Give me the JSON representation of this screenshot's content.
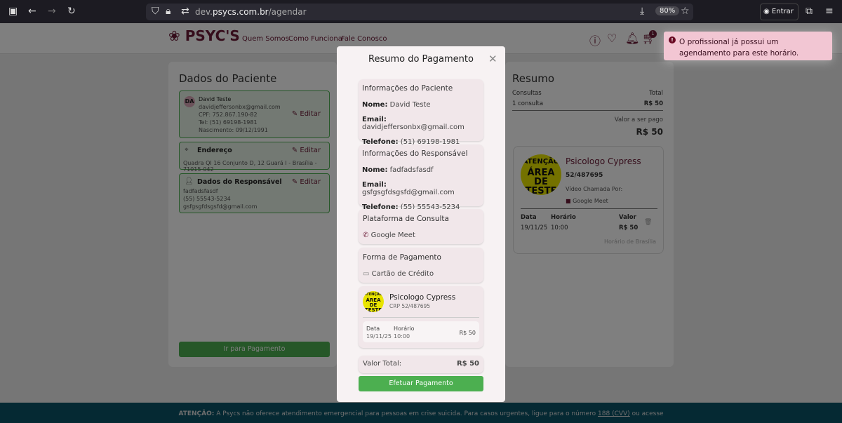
{
  "browser": {
    "url_host": "dev.psycs.com.br",
    "url_path": "/agendar",
    "url_prefix": "dev.",
    "url_domain": "psycs.com.br",
    "zoom": "80%",
    "signin": "Entrar"
  },
  "header": {
    "logo": "PSYC'S",
    "nav": [
      "Quem Somos",
      "Como Funciona",
      "Fale Conosco"
    ],
    "cart_count": "1"
  },
  "patient": {
    "title": "Dados do Paciente",
    "initials": "DA",
    "name": "David Teste",
    "email": "davidjeffersonbx@gmail.com",
    "cpf": "CPF: 752.867.190-82",
    "tel": "Tel: (51) 69198-1981",
    "birth": "Nascimento: 09/12/1991",
    "edit": "Editar",
    "address_title": "Endereço",
    "address": "Quadra QI 16 Conjunto D, 12 Guará I - Brasília - 71015-042",
    "resp_title": "Dados do Responsável",
    "resp_name": "fadfadsfasdf",
    "resp_tel": "(55) 55543-5234",
    "resp_email": "gsfgsgfdsgsfd@gmail.com",
    "pay_button": "Ir para Pagamento"
  },
  "summary": {
    "title": "Resumo",
    "col1": "Consultas",
    "col2": "Total",
    "count": "1 consulta",
    "total": "R$ 50",
    "to_pay_label": "Valor a ser pago",
    "to_pay": "R$ 50",
    "pro_name": "Psicologo Cypress",
    "crp": "52/487695",
    "video_label": "Vídeo Chamada Por:",
    "platform": "Google Meet",
    "date_h": "Data",
    "time_h": "Horário",
    "value_h": "Valor",
    "date": "19/11/25",
    "time": "10:00",
    "value": "R$ 50",
    "tz": "Horário de Brasília"
  },
  "test_image": {
    "l1": "ATENÇÃO",
    "l2": "ÁREA DE",
    "l3": "TESTE"
  },
  "modal": {
    "title": "Resumo do Pagamento",
    "patient_h": "Informações do Paciente",
    "resp_h": "Informações do Responsável",
    "name_l": "Nome:",
    "email_l": "Email:",
    "phone_l": "Telefone:",
    "p_name": "David Teste",
    "p_email": "davidjeffersonbx@gmail.com",
    "p_phone": "(51) 69198-1981",
    "r_name": "fadfadsfasdf",
    "r_email": "gsfgsgfdsgsfd@gmail.com",
    "r_phone": "(55) 55543-5234",
    "platform_h": "Plataforma de Consulta",
    "platform": "Google Meet",
    "payment_h": "Forma de Pagamento",
    "payment": "Cartão de Crédito",
    "pro_name": "Psicologo Cypress",
    "crp": "CRP 52/487695",
    "date_h": "Data",
    "time_h": "Horário",
    "date": "19/11/25",
    "time": "10:00",
    "price": "R$ 50",
    "total_l": "Valor Total:",
    "total": "R$ 50",
    "submit": "Efetuar Pagamento"
  },
  "toast": {
    "message": "O profissional já possui um agendamento para este horário."
  },
  "footer": {
    "bold": "ATENÇÃO:",
    "text": " A Psycs não oferece atendimento emergencial para pessoas em crise suicida. Para casos urgentes, ligue para o número ",
    "link": "188 (CVV)",
    "after": " ou acesse"
  },
  "colors": {
    "brand": "#6a1a36",
    "green": "#4caf50",
    "toast": "#f2c6d3",
    "footer": "#0b5266"
  }
}
